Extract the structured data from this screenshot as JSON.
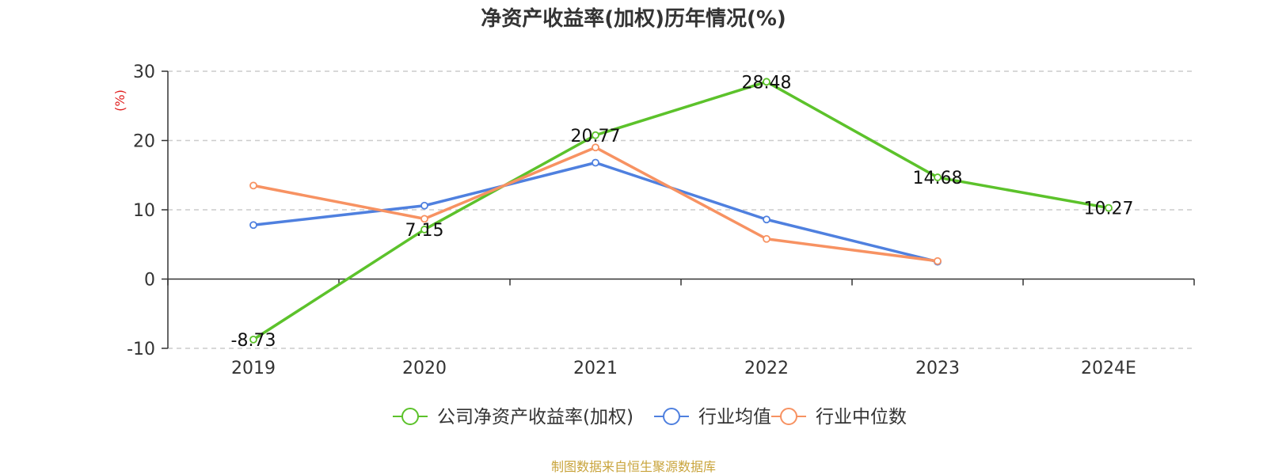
{
  "chart_data": {
    "type": "line",
    "title": "净资产收益率(加权)历年情况(%)",
    "ylabel": "(%)",
    "categories": [
      "2019",
      "2020",
      "2021",
      "2022",
      "2023",
      "2024E"
    ],
    "ylim": [
      -10,
      30
    ],
    "yticks": [
      -10,
      0,
      10,
      20,
      30
    ],
    "grid": "dashed horizontal",
    "legend_position": "bottom-center",
    "series": [
      {
        "name": "公司净资产收益率(加权)",
        "color": "#5cc22b",
        "values": [
          -8.73,
          7.15,
          20.77,
          28.48,
          14.68,
          10.27
        ],
        "labels": [
          "-8.73",
          "7.15",
          "20.77",
          "28.48",
          "14.68",
          "10.27"
        ]
      },
      {
        "name": "行业均值",
        "color": "#4f80df",
        "values": [
          7.8,
          10.6,
          16.8,
          8.6,
          2.5,
          null
        ]
      },
      {
        "name": "行业中位数",
        "color": "#f79262",
        "values": [
          13.5,
          8.7,
          19.0,
          5.8,
          2.6,
          null
        ]
      }
    ],
    "source": "制图数据来自恒生聚源数据库"
  }
}
